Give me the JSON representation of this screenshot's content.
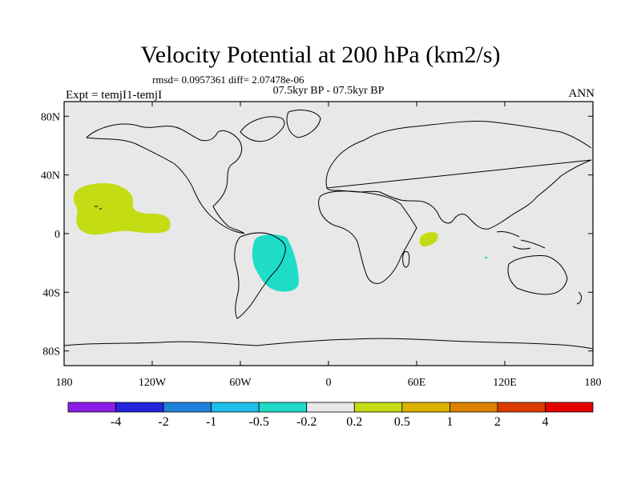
{
  "title": "Velocity Potential at 200 hPa (km2/s)",
  "stats": "rmsd= 0.0957361 diff= 2.07478e-06",
  "subtitle": "07.5kyr BP - 07.5kyr BP",
  "experiment": "Expt = temjI1-temjI",
  "season": "ANN",
  "map": {
    "lon_labels": [
      "180",
      "120W",
      "60W",
      "0",
      "60E",
      "120E",
      "180"
    ],
    "lat_labels": [
      "80N",
      "40N",
      "0",
      "40S",
      "80S"
    ],
    "background_color": "#e8e8e8",
    "coast_color": "#000000"
  },
  "colorbar": {
    "labels": [
      "-4",
      "-2",
      "-1",
      "-0.5",
      "-0.2",
      "0.2",
      "0.5",
      "1",
      "2",
      "4"
    ],
    "colors": [
      "#8a1ee6",
      "#2424dc",
      "#1e82dc",
      "#1ebeeb",
      "#1edcc8",
      "#e8e8e8",
      "#c3dc14",
      "#dcb400",
      "#dc8200",
      "#dc3c00",
      "#e60000"
    ]
  },
  "regions": [
    {
      "name": "pacific-positive",
      "level": "0.2 to 0.5",
      "color": "#c3dc14"
    },
    {
      "name": "south-america-negative",
      "level": "-0.5 to -0.2",
      "color": "#1edcc8"
    },
    {
      "name": "indian-ocean-positive",
      "level": "0.2 to 0.5",
      "color": "#c3dc14"
    }
  ]
}
